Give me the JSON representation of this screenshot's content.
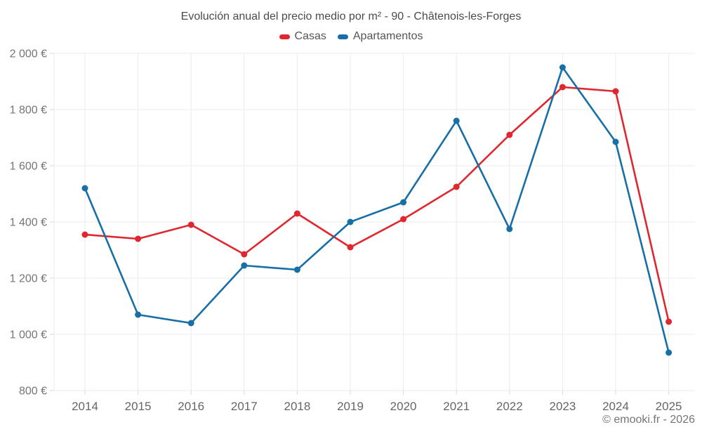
{
  "title": "Evolución anual del precio medio por m² - 90 - Châtenois-les-Forges",
  "legend": {
    "items": [
      {
        "label": "Casas",
        "color": "#e0262f"
      },
      {
        "label": "Apartamentos",
        "color": "#176fa5"
      }
    ]
  },
  "footer": {
    "attribution": "© emooki.fr - 2026"
  },
  "chart_data": {
    "type": "line",
    "title": "Evolución anual del precio medio por m² - 90 - Châtenois-les-Forges",
    "xlabel": "",
    "ylabel": "",
    "categories": [
      "2014",
      "2015",
      "2016",
      "2017",
      "2018",
      "2019",
      "2020",
      "2021",
      "2022",
      "2023",
      "2024",
      "2025"
    ],
    "series": [
      {
        "name": "Casas",
        "color": "#e0262f",
        "values": [
          1355,
          1340,
          1390,
          1285,
          1430,
          1310,
          1410,
          1525,
          1710,
          1880,
          1865,
          1045
        ]
      },
      {
        "name": "Apartamentos",
        "color": "#176fa5",
        "values": [
          1520,
          1070,
          1040,
          1245,
          1230,
          1400,
          1470,
          1760,
          1375,
          1950,
          1685,
          935
        ]
      }
    ],
    "ylim": [
      800,
      2000
    ],
    "y_ticks": [
      800,
      1000,
      1200,
      1400,
      1600,
      1800,
      2000
    ],
    "y_tick_labels": [
      "800 €",
      "1 000 €",
      "1 200 €",
      "1 400 €",
      "1 600 €",
      "1 800 €",
      "2 000 €"
    ],
    "grid": true,
    "legend_position": "top",
    "colors": {
      "grid": "#ebebeb",
      "tick": "#d8d8d8",
      "y_tick_label": "#757575",
      "x_tick_label": "#666666"
    }
  }
}
